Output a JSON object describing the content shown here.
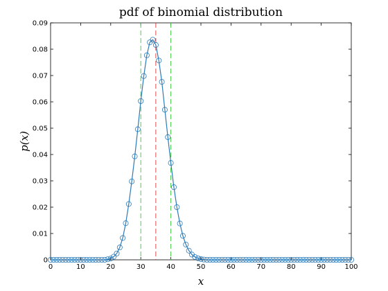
{
  "chart_data": {
    "type": "line",
    "title": "pdf of binomial distribution",
    "xlabel": "x",
    "ylabel": "p(x)",
    "xlim": [
      0,
      100
    ],
    "ylim": [
      0,
      0.09
    ],
    "xticks": [
      0,
      10,
      20,
      30,
      40,
      50,
      60,
      70,
      80,
      90,
      100
    ],
    "yticks": [
      0,
      0.01,
      0.02,
      0.03,
      0.04,
      0.05,
      0.06,
      0.07,
      0.08,
      0.09
    ],
    "xtick_labels": [
      "0",
      "10",
      "20",
      "30",
      "40",
      "50",
      "60",
      "70",
      "80",
      "90",
      "100"
    ],
    "ytick_labels": [
      "0",
      "0.01",
      "0.02",
      "0.03",
      "0.04",
      "0.05",
      "0.06",
      "0.07",
      "0.08",
      "0.09"
    ],
    "grid": false,
    "series": [
      {
        "type": "line+markers",
        "marker": "circle-open",
        "color": "#2b7bba",
        "x": [
          0,
          1,
          2,
          3,
          4,
          5,
          6,
          7,
          8,
          9,
          10,
          11,
          12,
          13,
          14,
          15,
          16,
          17,
          18,
          19,
          20,
          21,
          22,
          23,
          24,
          25,
          26,
          27,
          28,
          29,
          30,
          31,
          32,
          33,
          34,
          35,
          36,
          37,
          38,
          39,
          40,
          41,
          42,
          43,
          44,
          45,
          46,
          47,
          48,
          49,
          50,
          51,
          52,
          53,
          54,
          55,
          56,
          57,
          58,
          59,
          60,
          61,
          62,
          63,
          64,
          65,
          66,
          67,
          68,
          69,
          70,
          71,
          72,
          73,
          74,
          75,
          76,
          77,
          78,
          79,
          80,
          81,
          82,
          83,
          84,
          85,
          86,
          87,
          88,
          89,
          90,
          91,
          92,
          93,
          94,
          95,
          96,
          97,
          98,
          99,
          100
        ],
        "y": [
          0,
          0,
          0,
          0,
          0,
          0,
          0,
          0,
          0,
          0,
          0,
          0,
          0,
          0,
          0,
          0,
          0,
          0,
          0,
          0.0002,
          0.0005,
          0.0012,
          0.0024,
          0.0047,
          0.0083,
          0.0139,
          0.0212,
          0.0298,
          0.0393,
          0.0496,
          0.0603,
          0.0698,
          0.0777,
          0.0826,
          0.0836,
          0.0816,
          0.0757,
          0.0676,
          0.057,
          0.0466,
          0.0368,
          0.0276,
          0.02,
          0.0138,
          0.0091,
          0.0058,
          0.0035,
          0.002,
          0.0011,
          0.0006,
          0.0003,
          0.0001,
          0,
          0,
          0,
          0,
          0,
          0,
          0,
          0,
          0,
          0,
          0,
          0,
          0,
          0,
          0,
          0,
          0,
          0,
          0,
          0,
          0,
          0,
          0,
          0,
          0,
          0,
          0,
          0,
          0,
          0,
          0,
          0,
          0,
          0,
          0,
          0,
          0,
          0,
          0,
          0,
          0,
          0,
          0,
          0,
          0,
          0,
          0,
          0,
          0
        ]
      }
    ],
    "vlines": [
      {
        "x": 30,
        "color": "#33cc33",
        "style": "dashed"
      },
      {
        "x": 35,
        "color": "#e03030",
        "style": "dashed"
      },
      {
        "x": 40,
        "color": "#33cc33",
        "style": "dashed"
      }
    ]
  }
}
